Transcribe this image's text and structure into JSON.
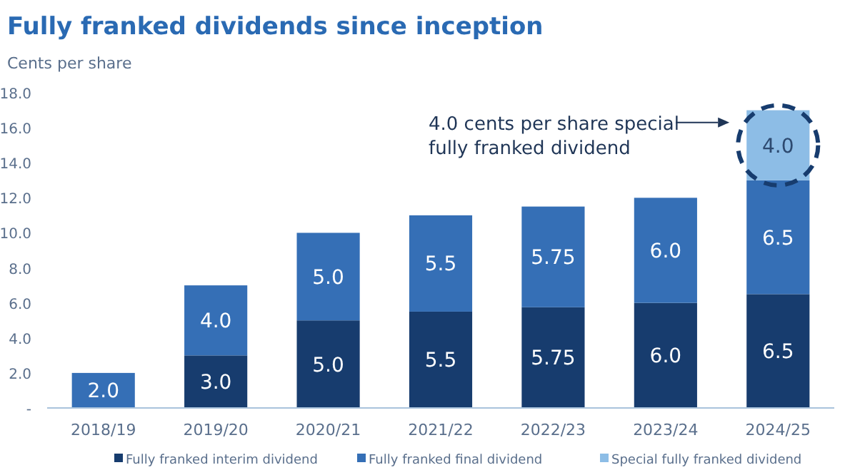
{
  "chart_data": {
    "type": "bar",
    "title": "Fully franked dividends since inception",
    "ylabel": "Cents per share",
    "categories": [
      "2018/19",
      "2019/20",
      "2020/21",
      "2021/22",
      "2022/23",
      "2023/24",
      "2024/25"
    ],
    "stacked": true,
    "grid": false,
    "legend": "bottom",
    "ylim": [
      0,
      18
    ],
    "yticks": [
      {
        "value": 0,
        "label": "-"
      },
      {
        "value": 2,
        "label": "2.0"
      },
      {
        "value": 4,
        "label": "4.0"
      },
      {
        "value": 6,
        "label": "6.0"
      },
      {
        "value": 8,
        "label": "8.0"
      },
      {
        "value": 10,
        "label": "10.0"
      },
      {
        "value": 12,
        "label": "12.0"
      },
      {
        "value": 14,
        "label": "14.0"
      },
      {
        "value": 16,
        "label": "16.0"
      },
      {
        "value": 18,
        "label": "18.0"
      }
    ],
    "series": [
      {
        "name": "Fully franked interim dividend",
        "color": "#173c6e",
        "values": [
          null,
          3,
          5,
          5.5,
          5.75,
          6,
          6.5
        ],
        "value_labels": [
          null,
          "3.0",
          "5.0",
          "5.5",
          "5.75",
          "6.0",
          "6.5"
        ]
      },
      {
        "name": "Fully franked final dividend",
        "color": "#356fb6",
        "values": [
          2,
          4,
          5,
          5.5,
          5.75,
          6,
          6.5
        ],
        "value_labels": [
          "2.0",
          "4.0",
          "5.0",
          "5.5",
          "5.75",
          "6.0",
          "6.5"
        ]
      },
      {
        "name": "Special fully franked dividend",
        "color": "#8dbde6",
        "values": [
          null,
          null,
          null,
          null,
          null,
          null,
          4
        ],
        "value_labels": [
          null,
          null,
          null,
          null,
          null,
          null,
          "4.0"
        ]
      }
    ],
    "annotations": [
      "4.0 cents per share special fully franked dividend"
    ]
  }
}
